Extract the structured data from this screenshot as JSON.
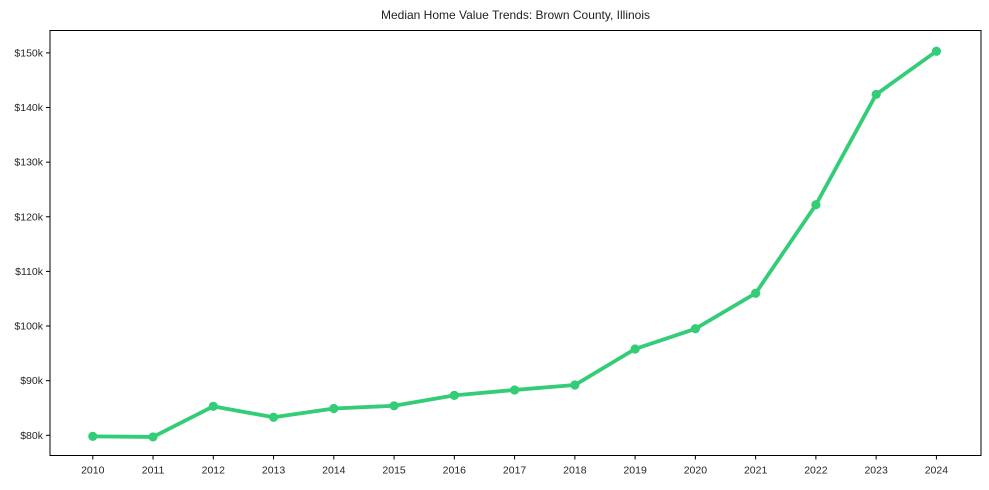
{
  "chart_data": {
    "type": "line",
    "title": "Median Home Value Trends: Brown County, Illinois",
    "xlabel": "",
    "ylabel": "",
    "x": [
      2010,
      2011,
      2012,
      2013,
      2014,
      2015,
      2016,
      2017,
      2018,
      2019,
      2020,
      2021,
      2022,
      2023,
      2024
    ],
    "x_tick_labels": [
      "2010",
      "2011",
      "2012",
      "2013",
      "2014",
      "2015",
      "2016",
      "2017",
      "2018",
      "2019",
      "2020",
      "2021",
      "2022",
      "2023",
      "2024"
    ],
    "series": [
      {
        "name": "Median Home Value",
        "values": [
          79800,
          79700,
          85300,
          83300,
          84900,
          85400,
          87300,
          88300,
          89200,
          95800,
          99500,
          106000,
          122200,
          142400,
          150300
        ]
      }
    ],
    "y_ticks": [
      80000,
      90000,
      100000,
      110000,
      120000,
      130000,
      140000,
      150000
    ],
    "y_tick_labels": [
      "$80k",
      "$90k",
      "$100k",
      "$110k",
      "$120k",
      "$130k",
      "$140k",
      "$150k"
    ],
    "xlim": [
      2009.29,
      2024.74
    ],
    "ylim": [
      76300,
      154100
    ],
    "grid": false,
    "legend": "none",
    "colors": {
      "line": "#33cc77",
      "marker": "#33cc77",
      "frame": "#000000",
      "tick_text": "#262626",
      "background": "#ffffff"
    }
  }
}
